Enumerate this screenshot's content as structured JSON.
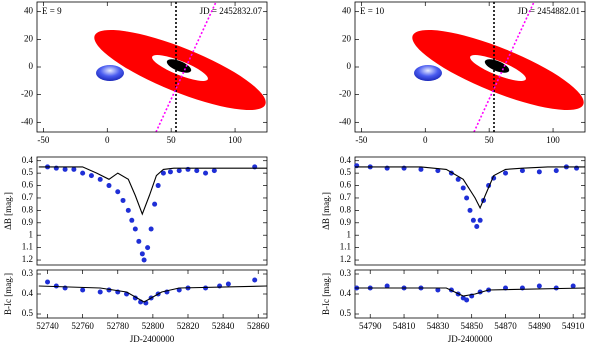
{
  "chart_data": [
    {
      "type": "geometry",
      "labels": [
        "E = 9",
        "JD = 2452832.07"
      ],
      "xlim": [
        -55,
        125
      ],
      "ylim": [
        -47,
        47
      ],
      "xticks": [
        -50,
        0,
        50,
        100
      ],
      "yticks": [
        40,
        20,
        0,
        -20,
        -40
      ]
    },
    {
      "type": "scatter",
      "ylabel": "ΔB [mag.]",
      "y_inverted": true,
      "xlim": [
        52734,
        52865
      ],
      "ylim": [
        0.37,
        1.24
      ],
      "yticks": [
        0.4,
        0.5,
        0.6,
        0.7,
        0.8,
        0.9,
        1,
        1.1,
        1.2
      ],
      "series": [
        {
          "color": "#1f2fd6",
          "marker": "circle",
          "x": [
            52740,
            52745,
            52750,
            52755,
            52760,
            52765,
            52770,
            52775,
            52780,
            52783,
            52786,
            52788,
            52790,
            52792,
            52794,
            52795,
            52797,
            52799,
            52801,
            52803,
            52806,
            52810,
            52815,
            52820,
            52825,
            52830,
            52835,
            52858
          ],
          "values": [
            0.45,
            0.46,
            0.47,
            0.47,
            0.5,
            0.52,
            0.55,
            0.6,
            0.65,
            0.72,
            0.8,
            0.88,
            0.95,
            1.05,
            1.15,
            1.2,
            1.1,
            0.95,
            0.75,
            0.6,
            0.5,
            0.49,
            0.48,
            0.47,
            0.48,
            0.5,
            0.48,
            0.45
          ]
        },
        {
          "color": "#000000",
          "marker": "line",
          "x": [
            52735,
            52760,
            52768,
            52775,
            52780,
            52786,
            52790,
            52794,
            52798,
            52802,
            52806,
            52812,
            52865
          ],
          "values": [
            0.45,
            0.45,
            0.5,
            0.55,
            0.5,
            0.55,
            0.68,
            0.83,
            0.68,
            0.52,
            0.47,
            0.46,
            0.46
          ]
        }
      ]
    },
    {
      "type": "scatter",
      "ylabel": "B-Ic [mag.]",
      "xlabel": "JD-2400000",
      "y_inverted": true,
      "xlim": [
        52734,
        52865
      ],
      "ylim": [
        0.28,
        0.52
      ],
      "yticks": [
        0.3,
        0.4,
        0.5
      ],
      "xticks": [
        52740,
        52760,
        52780,
        52800,
        52820,
        52840,
        52860
      ],
      "series": [
        {
          "color": "#1f2fd6",
          "marker": "circle",
          "x": [
            52740,
            52745,
            52750,
            52760,
            52770,
            52775,
            52780,
            52785,
            52790,
            52793,
            52796,
            52799,
            52803,
            52808,
            52815,
            52820,
            52830,
            52838,
            52843,
            52858
          ],
          "values": [
            0.34,
            0.36,
            0.37,
            0.38,
            0.39,
            0.38,
            0.39,
            0.4,
            0.42,
            0.44,
            0.445,
            0.42,
            0.4,
            0.39,
            0.38,
            0.37,
            0.37,
            0.36,
            0.35,
            0.33
          ]
        },
        {
          "color": "#000000",
          "marker": "line",
          "x": [
            52735,
            52770,
            52785,
            52795,
            52805,
            52815,
            52865
          ],
          "values": [
            0.36,
            0.37,
            0.39,
            0.44,
            0.39,
            0.37,
            0.36
          ]
        }
      ]
    },
    {
      "type": "geometry",
      "labels": [
        "E = 10",
        "JD = 2454882.01"
      ],
      "xlim": [
        -55,
        125
      ],
      "ylim": [
        -47,
        47
      ],
      "xticks": [
        -50,
        0,
        50,
        100
      ],
      "yticks": [
        40,
        20,
        0,
        -20,
        -40
      ]
    },
    {
      "type": "scatter",
      "ylabel": "ΔB [mag.]",
      "y_inverted": true,
      "xlim": [
        54781,
        54917
      ],
      "ylim": [
        0.37,
        1.24
      ],
      "yticks": [
        0.4,
        0.5,
        0.6,
        0.7,
        0.8,
        0.9,
        1,
        1.1,
        1.2
      ],
      "series": [
        {
          "color": "#1f2fd6",
          "marker": "circle",
          "x": [
            54782,
            54790,
            54800,
            54810,
            54820,
            54830,
            54838,
            54842,
            54845,
            54847,
            54849,
            54851,
            54853,
            54855,
            54857,
            54860,
            54863,
            54870,
            54880,
            54890,
            54900,
            54906,
            54912
          ],
          "values": [
            0.44,
            0.45,
            0.46,
            0.46,
            0.47,
            0.48,
            0.5,
            0.55,
            0.62,
            0.7,
            0.8,
            0.88,
            0.93,
            0.88,
            0.72,
            0.6,
            0.54,
            0.5,
            0.48,
            0.49,
            0.48,
            0.45,
            0.46
          ]
        },
        {
          "color": "#000000",
          "marker": "line",
          "x": [
            54781,
            54820,
            54835,
            54845,
            54852,
            54855,
            54858,
            54863,
            54870,
            54880,
            54895,
            54917
          ],
          "values": [
            0.45,
            0.45,
            0.47,
            0.55,
            0.7,
            0.78,
            0.68,
            0.52,
            0.47,
            0.46,
            0.45,
            0.45
          ]
        }
      ]
    },
    {
      "type": "scatter",
      "ylabel": "B-Ic [mag.]",
      "xlabel": "JD-2400000",
      "y_inverted": true,
      "xlim": [
        54781,
        54917
      ],
      "ylim": [
        0.28,
        0.52
      ],
      "yticks": [
        0.3,
        0.4,
        0.5
      ],
      "xticks": [
        54790,
        54810,
        54830,
        54850,
        54870,
        54890,
        54910
      ],
      "series": [
        {
          "color": "#1f2fd6",
          "marker": "circle",
          "x": [
            54782,
            54790,
            54800,
            54810,
            54820,
            54830,
            54838,
            54842,
            54845,
            54847,
            54850,
            54855,
            54860,
            54870,
            54880,
            54890,
            54900,
            54910
          ],
          "values": [
            0.37,
            0.37,
            0.36,
            0.37,
            0.37,
            0.38,
            0.38,
            0.4,
            0.42,
            0.43,
            0.41,
            0.39,
            0.38,
            0.37,
            0.37,
            0.36,
            0.37,
            0.36
          ]
        },
        {
          "color": "#000000",
          "marker": "line",
          "x": [
            54781,
            54835,
            54845,
            54852,
            54860,
            54917
          ],
          "values": [
            0.37,
            0.37,
            0.41,
            0.4,
            0.38,
            0.37
          ]
        }
      ]
    }
  ]
}
